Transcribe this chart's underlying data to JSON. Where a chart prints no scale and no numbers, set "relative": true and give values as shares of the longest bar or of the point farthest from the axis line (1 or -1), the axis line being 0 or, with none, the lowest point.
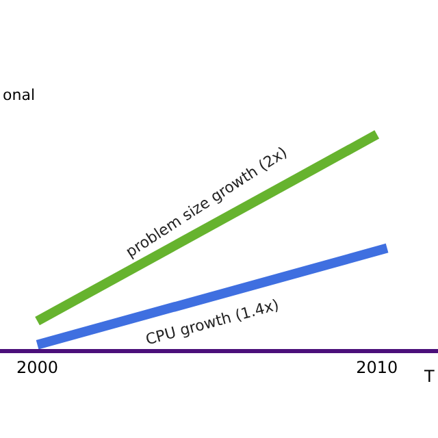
{
  "chart_data": {
    "type": "line",
    "relative": true,
    "x": [
      2000,
      2010
    ],
    "xlim": [
      1998.9,
      2011.8
    ],
    "xticks": [
      2000,
      2010
    ],
    "xlabel": "T",
    "legend": false,
    "marker": "none",
    "line_style": "solid",
    "series": [
      {
        "name": "problem size growth (2x)",
        "color": "#66b32e",
        "values": [
          0.13,
          1
        ]
      },
      {
        "name": "CPU growth (1.4x)",
        "color": "#3f6fe0",
        "x": [
          2000,
          2010.3
        ],
        "values": [
          0.02,
          0.47
        ]
      }
    ],
    "annotations": [
      "onal"
    ]
  }
}
